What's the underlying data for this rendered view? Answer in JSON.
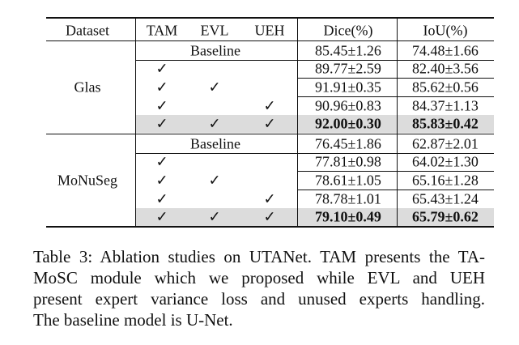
{
  "table": {
    "header": [
      "Dataset",
      "TAM",
      "EVL",
      "UEH",
      "Dice(%)",
      "IoU(%)"
    ],
    "groups": [
      {
        "dataset": "Glas",
        "rows": [
          {
            "baseline": "Baseline",
            "dice": "85.45±1.26",
            "iou": "74.48±1.66"
          },
          {
            "tam": "✓",
            "dice": "89.77±2.59",
            "iou": "82.40±3.56"
          },
          {
            "tam": "✓",
            "evl": "✓",
            "dice": "91.91±0.35",
            "iou": "85.62±0.56"
          },
          {
            "tam": "✓",
            "ueh": "✓",
            "dice": "90.96±0.83",
            "iou": "84.37±1.13"
          },
          {
            "tam": "✓",
            "evl": "✓",
            "ueh": "✓",
            "dice": "92.00±0.30",
            "iou": "85.83±0.42",
            "highlight": true
          }
        ]
      },
      {
        "dataset": "MoNuSeg",
        "rows": [
          {
            "baseline": "Baseline",
            "dice": "76.45±1.86",
            "iou": "62.87±2.01"
          },
          {
            "tam": "✓",
            "dice": "77.81±0.98",
            "iou": "64.02±1.30"
          },
          {
            "tam": "✓",
            "evl": "✓",
            "dice": "78.61±1.05",
            "iou": "65.16±1.28"
          },
          {
            "tam": "✓",
            "ueh": "✓",
            "dice": "78.78±1.01",
            "iou": "65.43±1.24"
          },
          {
            "tam": "✓",
            "evl": "✓",
            "ueh": "✓",
            "dice": "79.10±0.49",
            "iou": "65.79±0.62",
            "highlight": true
          }
        ]
      }
    ]
  },
  "caption": [
    "Table 3: Ablation studies on UTANet. TAM presents the TA-",
    "MoSC module which we proposed while EVL and UEH",
    "present expert variance loss and unused experts handling.",
    "The baseline model is U-Net."
  ]
}
